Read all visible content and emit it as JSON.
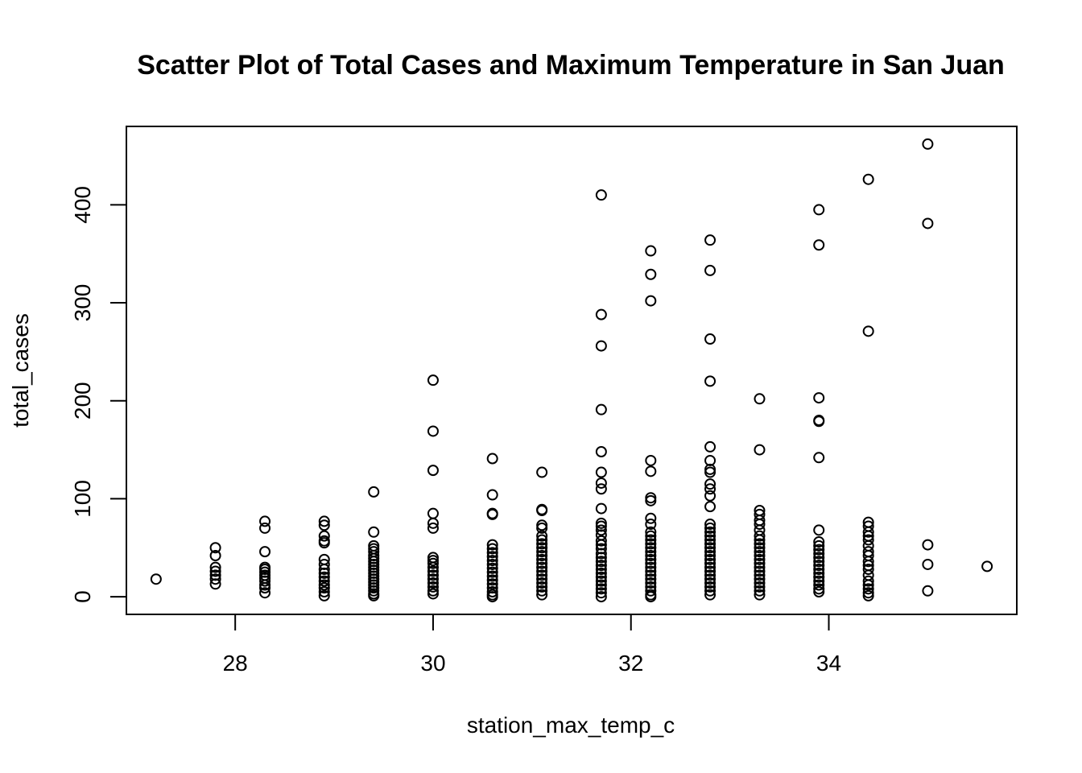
{
  "chart_data": {
    "type": "scatter",
    "title": "Scatter Plot of Total Cases and Maximum Temperature in San Juan",
    "xlabel": "station_max_temp_c",
    "ylabel": "total_cases",
    "xlim": [
      26.9,
      35.9
    ],
    "ylim": [
      -18,
      480
    ],
    "x_ticks": [
      28,
      30,
      32,
      34
    ],
    "y_ticks": [
      0,
      100,
      200,
      300,
      400
    ],
    "grid": false,
    "legend": "none",
    "marker": "open-circle",
    "points": [
      [
        27.2,
        18
      ],
      [
        27.8,
        50
      ],
      [
        27.8,
        42
      ],
      [
        27.8,
        30
      ],
      [
        27.8,
        26
      ],
      [
        27.8,
        22
      ],
      [
        27.8,
        18
      ],
      [
        27.8,
        13
      ],
      [
        28.3,
        77
      ],
      [
        28.3,
        70
      ],
      [
        28.3,
        46
      ],
      [
        28.3,
        30
      ],
      [
        28.3,
        28
      ],
      [
        28.3,
        25
      ],
      [
        28.3,
        22
      ],
      [
        28.3,
        19
      ],
      [
        28.3,
        16
      ],
      [
        28.3,
        12
      ],
      [
        28.3,
        9
      ],
      [
        28.3,
        4
      ],
      [
        28.9,
        77
      ],
      [
        28.9,
        73
      ],
      [
        28.9,
        62
      ],
      [
        28.9,
        57
      ],
      [
        28.9,
        55
      ],
      [
        28.9,
        38
      ],
      [
        28.9,
        33
      ],
      [
        28.9,
        28
      ],
      [
        28.9,
        24
      ],
      [
        28.9,
        20
      ],
      [
        28.9,
        16
      ],
      [
        28.9,
        12
      ],
      [
        28.9,
        9
      ],
      [
        28.9,
        5
      ],
      [
        28.9,
        1
      ],
      [
        29.4,
        107
      ],
      [
        29.4,
        66
      ],
      [
        29.4,
        52
      ],
      [
        29.4,
        49
      ],
      [
        29.4,
        46
      ],
      [
        29.4,
        42
      ],
      [
        29.4,
        39
      ],
      [
        29.4,
        36
      ],
      [
        29.4,
        33
      ],
      [
        29.4,
        30
      ],
      [
        29.4,
        27
      ],
      [
        29.4,
        24
      ],
      [
        29.4,
        21
      ],
      [
        29.4,
        18
      ],
      [
        29.4,
        15
      ],
      [
        29.4,
        12
      ],
      [
        29.4,
        9
      ],
      [
        29.4,
        6
      ],
      [
        29.4,
        3
      ],
      [
        29.4,
        1
      ],
      [
        30.0,
        221
      ],
      [
        30.0,
        169
      ],
      [
        30.0,
        129
      ],
      [
        30.0,
        85
      ],
      [
        30.0,
        75
      ],
      [
        30.0,
        70
      ],
      [
        30.0,
        40
      ],
      [
        30.0,
        37
      ],
      [
        30.0,
        34
      ],
      [
        30.0,
        30
      ],
      [
        30.0,
        26
      ],
      [
        30.0,
        22
      ],
      [
        30.0,
        18
      ],
      [
        30.0,
        14
      ],
      [
        30.0,
        10
      ],
      [
        30.0,
        6
      ],
      [
        30.0,
        3
      ],
      [
        30.6,
        141
      ],
      [
        30.6,
        104
      ],
      [
        30.6,
        85
      ],
      [
        30.6,
        84
      ],
      [
        30.6,
        53
      ],
      [
        30.6,
        49
      ],
      [
        30.6,
        45
      ],
      [
        30.6,
        41
      ],
      [
        30.6,
        37
      ],
      [
        30.6,
        33
      ],
      [
        30.6,
        29
      ],
      [
        30.6,
        25
      ],
      [
        30.6,
        21
      ],
      [
        30.6,
        17
      ],
      [
        30.6,
        13
      ],
      [
        30.6,
        9
      ],
      [
        30.6,
        5
      ],
      [
        30.6,
        2
      ],
      [
        30.6,
        0
      ],
      [
        31.1,
        127
      ],
      [
        31.1,
        89
      ],
      [
        31.1,
        88
      ],
      [
        31.1,
        73
      ],
      [
        31.1,
        70
      ],
      [
        31.1,
        62
      ],
      [
        31.1,
        58
      ],
      [
        31.1,
        54
      ],
      [
        31.1,
        50
      ],
      [
        31.1,
        46
      ],
      [
        31.1,
        42
      ],
      [
        31.1,
        38
      ],
      [
        31.1,
        34
      ],
      [
        31.1,
        30
      ],
      [
        31.1,
        26
      ],
      [
        31.1,
        22
      ],
      [
        31.1,
        18
      ],
      [
        31.1,
        14
      ],
      [
        31.1,
        10
      ],
      [
        31.1,
        6
      ],
      [
        31.1,
        2
      ],
      [
        31.7,
        410
      ],
      [
        31.7,
        288
      ],
      [
        31.7,
        256
      ],
      [
        31.7,
        191
      ],
      [
        31.7,
        148
      ],
      [
        31.7,
        127
      ],
      [
        31.7,
        116
      ],
      [
        31.7,
        110
      ],
      [
        31.7,
        90
      ],
      [
        31.7,
        75
      ],
      [
        31.7,
        72
      ],
      [
        31.7,
        68
      ],
      [
        31.7,
        63
      ],
      [
        31.7,
        57
      ],
      [
        31.7,
        53
      ],
      [
        31.7,
        49
      ],
      [
        31.7,
        44
      ],
      [
        31.7,
        40
      ],
      [
        31.7,
        36
      ],
      [
        31.7,
        32
      ],
      [
        31.7,
        28
      ],
      [
        31.7,
        24
      ],
      [
        31.7,
        20
      ],
      [
        31.7,
        16
      ],
      [
        31.7,
        12
      ],
      [
        31.7,
        8
      ],
      [
        31.7,
        4
      ],
      [
        31.7,
        0
      ],
      [
        32.2,
        353
      ],
      [
        32.2,
        329
      ],
      [
        32.2,
        302
      ],
      [
        32.2,
        139
      ],
      [
        32.2,
        128
      ],
      [
        32.2,
        101
      ],
      [
        32.2,
        98
      ],
      [
        32.2,
        80
      ],
      [
        32.2,
        74
      ],
      [
        32.2,
        66
      ],
      [
        32.2,
        62
      ],
      [
        32.2,
        58
      ],
      [
        32.2,
        54
      ],
      [
        32.2,
        50
      ],
      [
        32.2,
        46
      ],
      [
        32.2,
        42
      ],
      [
        32.2,
        38
      ],
      [
        32.2,
        34
      ],
      [
        32.2,
        30
      ],
      [
        32.2,
        26
      ],
      [
        32.2,
        22
      ],
      [
        32.2,
        18
      ],
      [
        32.2,
        14
      ],
      [
        32.2,
        10
      ],
      [
        32.2,
        6
      ],
      [
        32.2,
        2
      ],
      [
        32.2,
        0
      ],
      [
        32.8,
        364
      ],
      [
        32.8,
        333
      ],
      [
        32.8,
        263
      ],
      [
        32.8,
        220
      ],
      [
        32.8,
        153
      ],
      [
        32.8,
        139
      ],
      [
        32.8,
        130
      ],
      [
        32.8,
        127
      ],
      [
        32.8,
        115
      ],
      [
        32.8,
        110
      ],
      [
        32.8,
        103
      ],
      [
        32.8,
        92
      ],
      [
        32.8,
        74
      ],
      [
        32.8,
        70
      ],
      [
        32.8,
        66
      ],
      [
        32.8,
        62
      ],
      [
        32.8,
        58
      ],
      [
        32.8,
        54
      ],
      [
        32.8,
        50
      ],
      [
        32.8,
        46
      ],
      [
        32.8,
        42
      ],
      [
        32.8,
        38
      ],
      [
        32.8,
        34
      ],
      [
        32.8,
        30
      ],
      [
        32.8,
        26
      ],
      [
        32.8,
        22
      ],
      [
        32.8,
        18
      ],
      [
        32.8,
        14
      ],
      [
        32.8,
        10
      ],
      [
        32.8,
        6
      ],
      [
        32.8,
        2
      ],
      [
        33.3,
        202
      ],
      [
        33.3,
        150
      ],
      [
        33.3,
        88
      ],
      [
        33.3,
        84
      ],
      [
        33.3,
        78
      ],
      [
        33.3,
        74
      ],
      [
        33.3,
        68
      ],
      [
        33.3,
        62
      ],
      [
        33.3,
        58
      ],
      [
        33.3,
        54
      ],
      [
        33.3,
        50
      ],
      [
        33.3,
        46
      ],
      [
        33.3,
        42
      ],
      [
        33.3,
        38
      ],
      [
        33.3,
        34
      ],
      [
        33.3,
        30
      ],
      [
        33.3,
        26
      ],
      [
        33.3,
        22
      ],
      [
        33.3,
        18
      ],
      [
        33.3,
        14
      ],
      [
        33.3,
        10
      ],
      [
        33.3,
        6
      ],
      [
        33.3,
        2
      ],
      [
        33.9,
        395
      ],
      [
        33.9,
        359
      ],
      [
        33.9,
        203
      ],
      [
        33.9,
        180
      ],
      [
        33.9,
        179
      ],
      [
        33.9,
        142
      ],
      [
        33.9,
        68
      ],
      [
        33.9,
        56
      ],
      [
        33.9,
        52
      ],
      [
        33.9,
        48
      ],
      [
        33.9,
        44
      ],
      [
        33.9,
        40
      ],
      [
        33.9,
        36
      ],
      [
        33.9,
        32
      ],
      [
        33.9,
        28
      ],
      [
        33.9,
        24
      ],
      [
        33.9,
        20
      ],
      [
        33.9,
        16
      ],
      [
        33.9,
        12
      ],
      [
        33.9,
        8
      ],
      [
        33.9,
        5
      ],
      [
        34.4,
        426
      ],
      [
        34.4,
        271
      ],
      [
        34.4,
        76
      ],
      [
        34.4,
        72
      ],
      [
        34.4,
        66
      ],
      [
        34.4,
        62
      ],
      [
        34.4,
        58
      ],
      [
        34.4,
        52
      ],
      [
        34.4,
        46
      ],
      [
        34.4,
        42
      ],
      [
        34.4,
        36
      ],
      [
        34.4,
        32
      ],
      [
        34.4,
        28
      ],
      [
        34.4,
        22
      ],
      [
        34.4,
        16
      ],
      [
        34.4,
        12
      ],
      [
        34.4,
        8
      ],
      [
        34.4,
        4
      ],
      [
        34.4,
        1
      ],
      [
        35.0,
        462
      ],
      [
        35.0,
        381
      ],
      [
        35.0,
        53
      ],
      [
        35.0,
        33
      ],
      [
        35.0,
        6
      ],
      [
        35.6,
        31
      ]
    ]
  }
}
